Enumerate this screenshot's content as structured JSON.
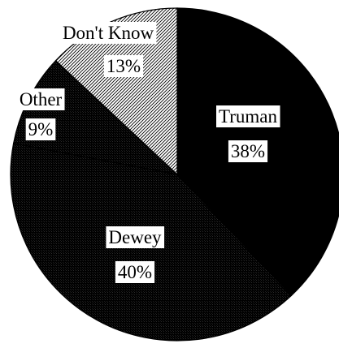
{
  "chart_data": {
    "type": "pie",
    "title": "",
    "slices": [
      {
        "name": "Truman",
        "value": 38,
        "label": "38%",
        "fill": "#000000",
        "pattern": "solid"
      },
      {
        "name": "Dewey",
        "value": 40,
        "label": "40%",
        "fill": "#000000",
        "pattern": "stipple"
      },
      {
        "name": "Other",
        "value": 9,
        "label": "9%",
        "fill": "#000000",
        "pattern": "stipple"
      },
      {
        "name": "Don't Know",
        "value": 13,
        "label": "13%",
        "fill": "#ffffff",
        "pattern": "hatch"
      }
    ]
  }
}
